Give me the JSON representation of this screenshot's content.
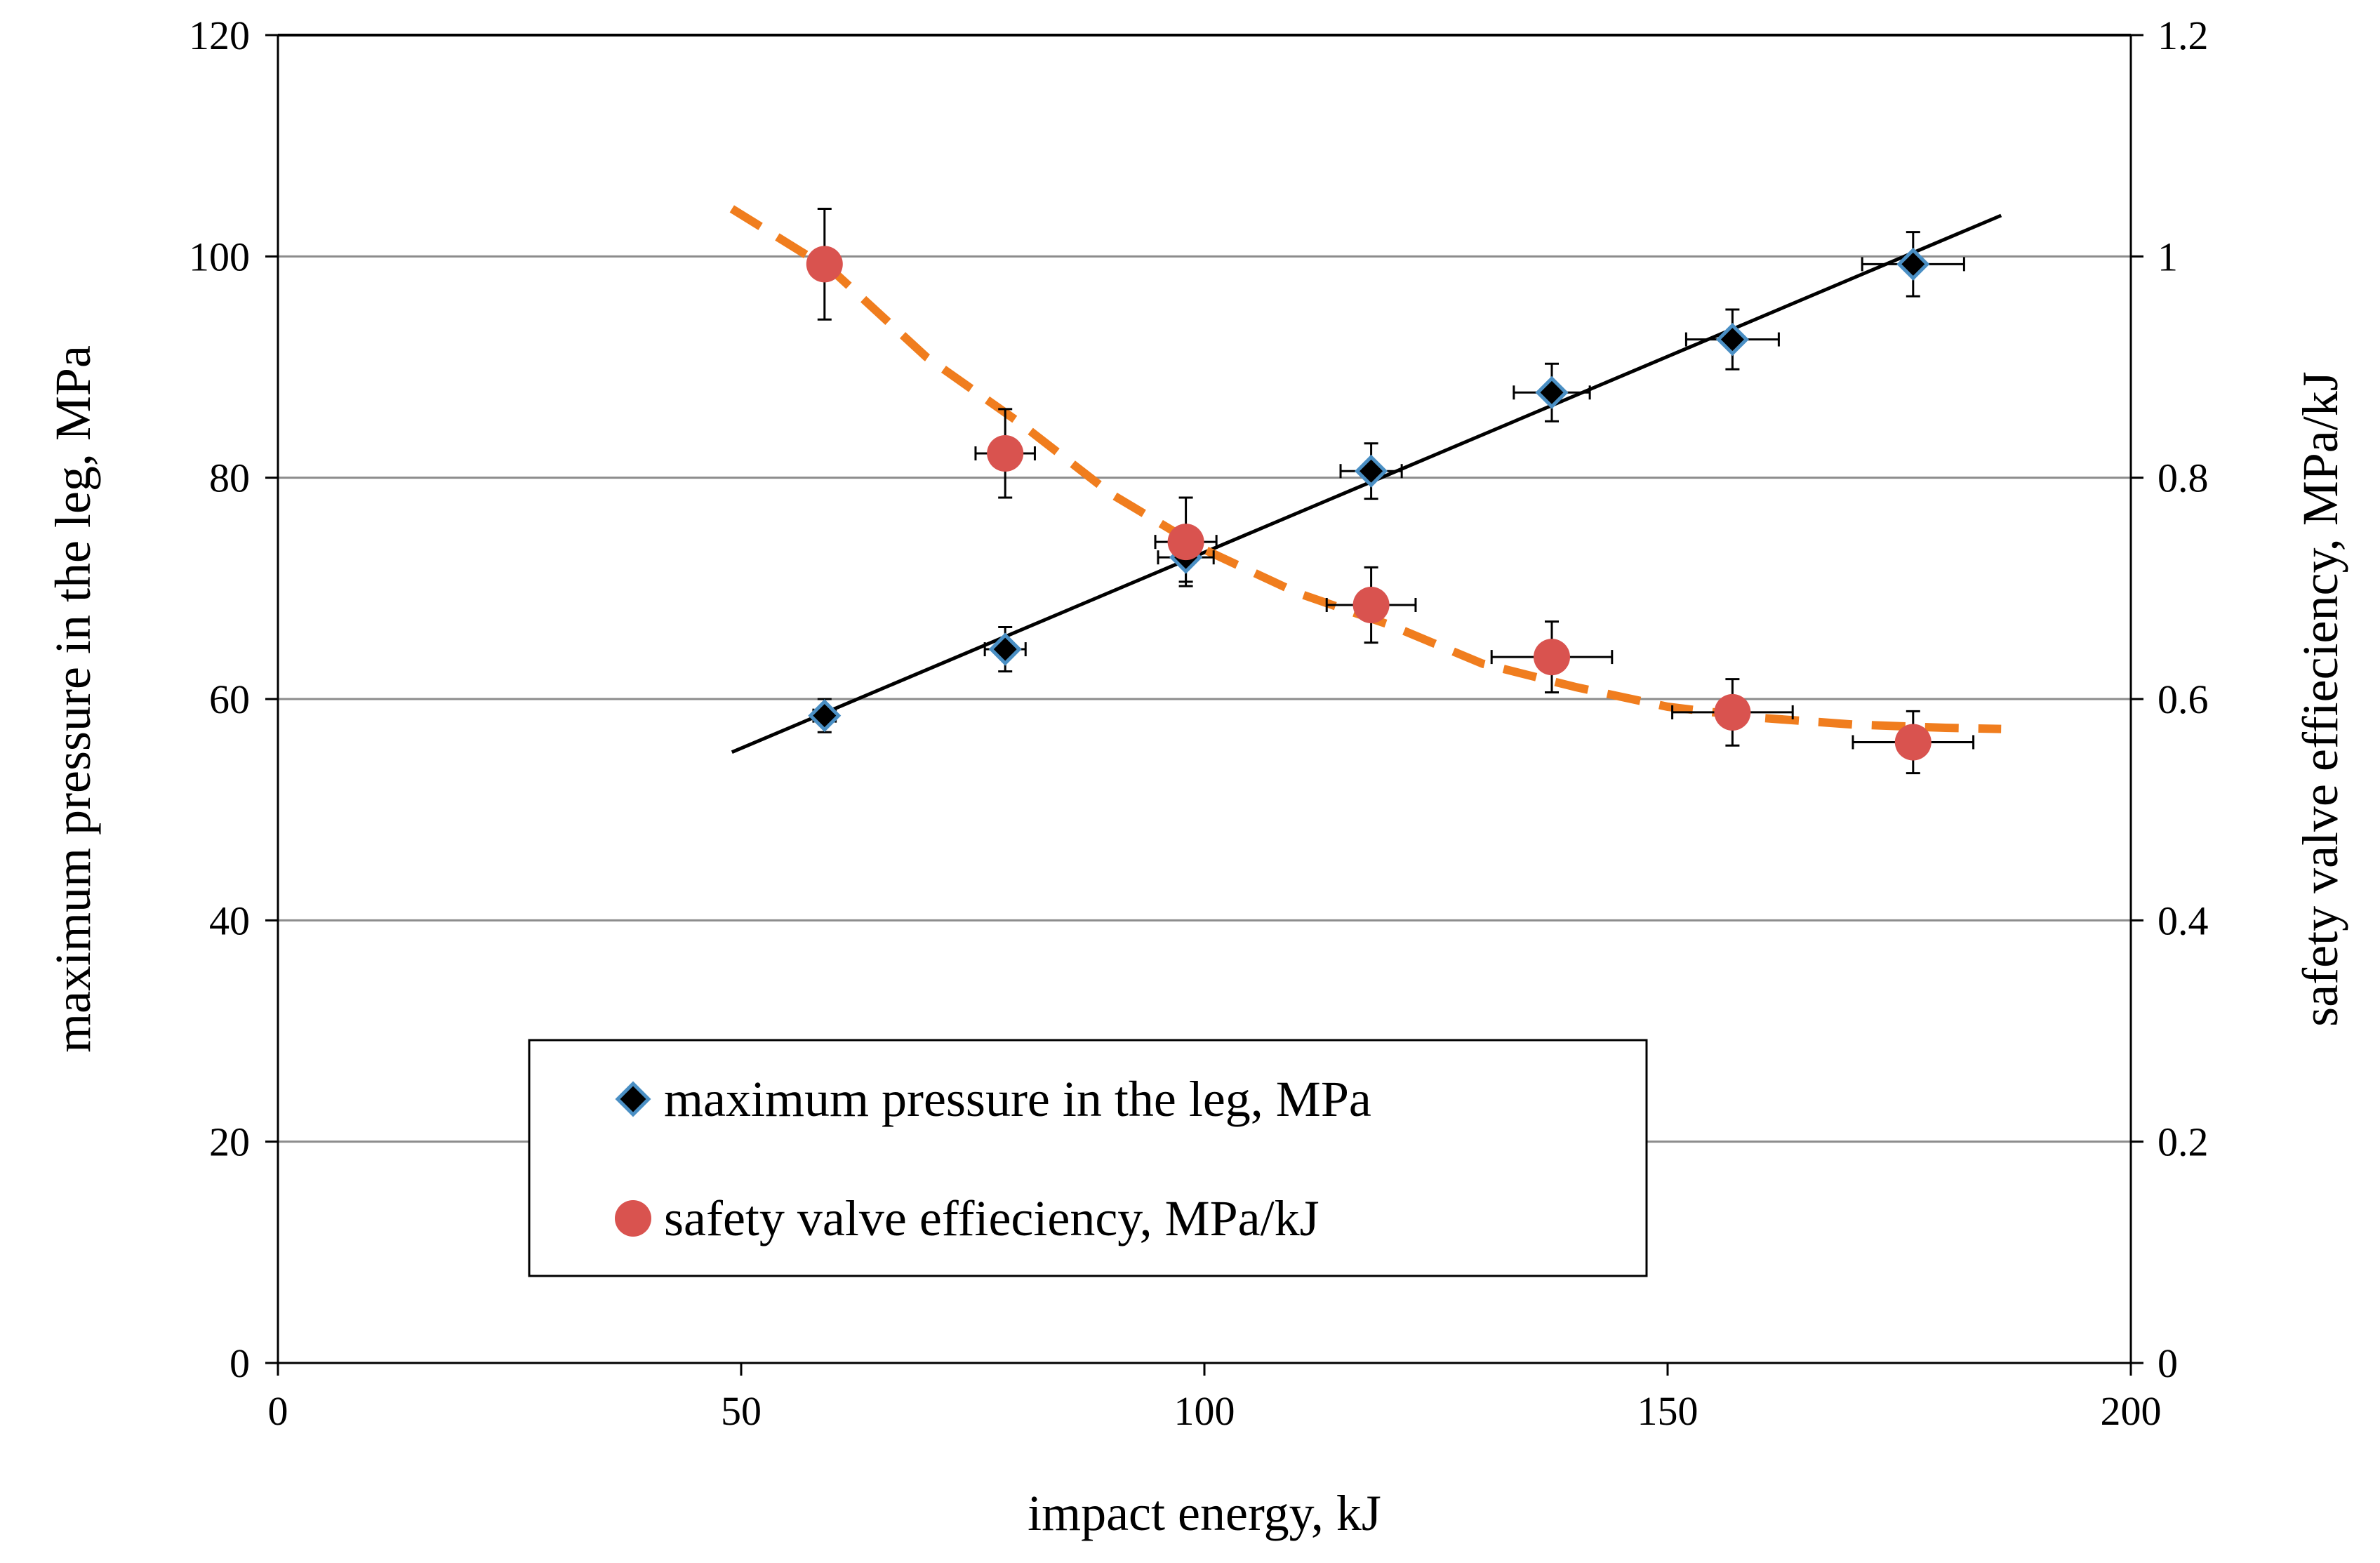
{
  "chart_data": {
    "type": "scatter",
    "title": "",
    "xlabel": "impact energy, kJ",
    "ylabel_left": "maximum pressure in the leg, MPa",
    "ylabel_right": "safety valve effieciency, MPa/kJ",
    "xlim": [
      0,
      200
    ],
    "ylim_left": [
      0,
      120
    ],
    "ylim_right": [
      0,
      1.2
    ],
    "x_ticks": [
      "0",
      "50",
      "100",
      "150",
      "200"
    ],
    "y_left_ticks": [
      "0",
      "20",
      "40",
      "60",
      "80",
      "100",
      "120"
    ],
    "y_right_ticks": [
      "0",
      "0.2",
      "0.4",
      "0.6",
      "0.8",
      "1",
      "1.2"
    ],
    "grid": "horizontal",
    "legend_position": "lower-center",
    "series": [
      {
        "name": "maximum pressure in the leg, MPa",
        "axis": "left",
        "marker": "diamond",
        "color": "#000000",
        "edge_color": "#4a8fc4",
        "x": [
          59,
          78.5,
          98,
          118,
          137.5,
          157,
          176.5
        ],
        "y": [
          58.5,
          64.5,
          72.8,
          80.6,
          87.7,
          92.5,
          99.3
        ],
        "x_err": [
          1.2,
          2.2,
          3,
          3.3,
          4.1,
          5,
          5.5
        ],
        "y_err": [
          1.5,
          2,
          2.2,
          2.5,
          2.6,
          2.7,
          2.9
        ],
        "trend": {
          "kind": "linear",
          "x": [
            49,
            186
          ],
          "y": [
            55.2,
            103.7
          ],
          "color": "#000000",
          "dash": "solid"
        }
      },
      {
        "name": "safety valve effieciency, MPa/kJ",
        "axis": "right",
        "marker": "circle",
        "color": "#d9534f",
        "x": [
          59,
          78.5,
          98,
          118,
          137.5,
          157,
          176.5
        ],
        "y": [
          0.993,
          0.822,
          0.742,
          0.685,
          0.638,
          0.588,
          0.561
        ],
        "x_err": [
          1.3,
          3.2,
          3.3,
          4.8,
          6.5,
          6.5,
          6.5
        ],
        "y_err": [
          0.05,
          0.04,
          0.04,
          0.034,
          0.032,
          0.03,
          0.028
        ],
        "trend": {
          "kind": "polynomial",
          "x": [
            49,
            60,
            70,
            80,
            90,
            100,
            110,
            120,
            130,
            140,
            150,
            160,
            170,
            180,
            186
          ],
          "y": [
            1.043,
            0.986,
            0.909,
            0.85,
            0.785,
            0.735,
            0.696,
            0.667,
            0.632,
            0.611,
            0.593,
            0.583,
            0.577,
            0.574,
            0.573
          ],
          "color": "#f07d1e",
          "dash": "dashed"
        }
      }
    ]
  }
}
